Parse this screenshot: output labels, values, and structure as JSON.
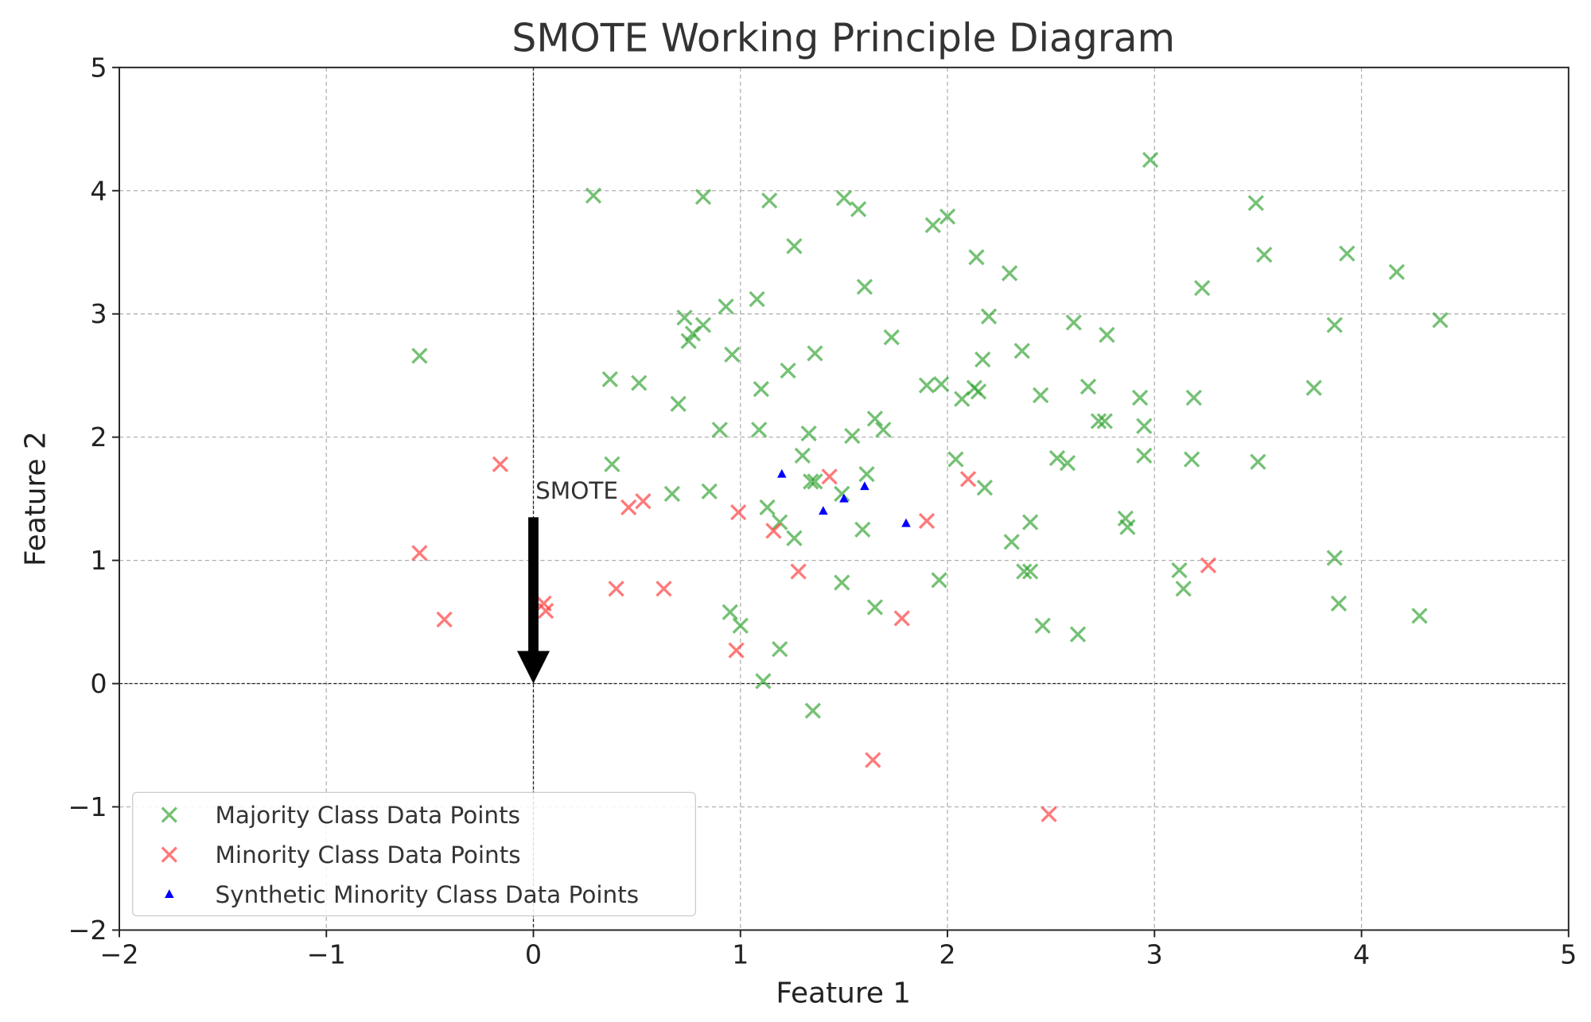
{
  "chart_data": {
    "type": "scatter",
    "title": "SMOTE Working Principle Diagram",
    "xlabel": "Feature 1",
    "ylabel": "Feature 2",
    "xlim": [
      -2,
      5
    ],
    "ylim": [
      -2,
      5
    ],
    "xticks": [
      -2,
      -1,
      0,
      1,
      2,
      3,
      4,
      5
    ],
    "yticks": [
      -2,
      -1,
      0,
      1,
      2,
      3,
      4,
      5
    ],
    "xtick_labels": [
      "−2",
      "−1",
      "0",
      "1",
      "2",
      "3",
      "4",
      "5"
    ],
    "ytick_labels": [
      "−2",
      "−1",
      "0",
      "1",
      "2",
      "3",
      "4",
      "5"
    ],
    "grid": true,
    "legend_position": "lower-left",
    "annotation": {
      "text": "SMOTE",
      "arrow_from": [
        0,
        1.35
      ],
      "arrow_to": [
        0,
        0
      ]
    },
    "series": [
      {
        "name": "Majority Class Data Points",
        "marker": "x",
        "color": "#2ca02c",
        "points": [
          [
            0.29,
            3.96
          ],
          [
            0.82,
            3.95
          ],
          [
            1.14,
            3.92
          ],
          [
            1.5,
            3.94
          ],
          [
            1.57,
            3.85
          ],
          [
            2.98,
            4.25
          ],
          [
            3.49,
            3.9
          ],
          [
            3.53,
            3.48
          ],
          [
            3.93,
            3.49
          ],
          [
            4.17,
            3.34
          ],
          [
            4.38,
            2.95
          ],
          [
            1.93,
            3.72
          ],
          [
            2.0,
            3.79
          ],
          [
            1.26,
            3.55
          ],
          [
            2.14,
            3.46
          ],
          [
            2.3,
            3.33
          ],
          [
            1.6,
            3.22
          ],
          [
            3.23,
            3.21
          ],
          [
            1.08,
            3.12
          ],
          [
            0.93,
            3.06
          ],
          [
            0.73,
            2.97
          ],
          [
            0.82,
            2.91
          ],
          [
            0.77,
            2.84
          ],
          [
            0.75,
            2.78
          ],
          [
            2.2,
            2.98
          ],
          [
            2.61,
            2.93
          ],
          [
            2.77,
            2.83
          ],
          [
            1.73,
            2.81
          ],
          [
            3.87,
            2.91
          ],
          [
            -0.55,
            2.66
          ],
          [
            0.96,
            2.67
          ],
          [
            1.36,
            2.68
          ],
          [
            2.36,
            2.7
          ],
          [
            2.17,
            2.63
          ],
          [
            0.37,
            2.47
          ],
          [
            0.51,
            2.44
          ],
          [
            1.23,
            2.54
          ],
          [
            1.1,
            2.39
          ],
          [
            1.9,
            2.42
          ],
          [
            1.97,
            2.43
          ],
          [
            2.13,
            2.4
          ],
          [
            2.15,
            2.37
          ],
          [
            2.07,
            2.31
          ],
          [
            2.45,
            2.34
          ],
          [
            2.68,
            2.41
          ],
          [
            2.93,
            2.32
          ],
          [
            3.19,
            2.32
          ],
          [
            3.77,
            2.4
          ],
          [
            0.7,
            2.27
          ],
          [
            0.9,
            2.06
          ],
          [
            1.09,
            2.06
          ],
          [
            1.33,
            2.03
          ],
          [
            1.54,
            2.01
          ],
          [
            1.65,
            2.15
          ],
          [
            1.69,
            2.06
          ],
          [
            2.73,
            2.13
          ],
          [
            2.76,
            2.13
          ],
          [
            2.95,
            2.09
          ],
          [
            0.38,
            1.78
          ],
          [
            1.3,
            1.85
          ],
          [
            2.04,
            1.82
          ],
          [
            2.53,
            1.83
          ],
          [
            2.58,
            1.79
          ],
          [
            2.95,
            1.85
          ],
          [
            3.18,
            1.82
          ],
          [
            3.5,
            1.8
          ],
          [
            0.67,
            1.54
          ],
          [
            0.85,
            1.56
          ],
          [
            1.34,
            1.64
          ],
          [
            1.36,
            1.64
          ],
          [
            1.61,
            1.7
          ],
          [
            1.49,
            1.54
          ],
          [
            2.18,
            1.59
          ],
          [
            1.13,
            1.43
          ],
          [
            1.19,
            1.31
          ],
          [
            1.59,
            1.25
          ],
          [
            1.26,
            1.18
          ],
          [
            2.86,
            1.34
          ],
          [
            2.87,
            1.27
          ],
          [
            2.4,
            1.31
          ],
          [
            2.31,
            1.15
          ],
          [
            3.12,
            0.92
          ],
          [
            3.14,
            0.77
          ],
          [
            2.37,
            0.91
          ],
          [
            2.4,
            0.91
          ],
          [
            3.87,
            1.02
          ],
          [
            3.89,
            0.65
          ],
          [
            4.28,
            0.55
          ],
          [
            1.96,
            0.84
          ],
          [
            1.49,
            0.82
          ],
          [
            0.95,
            0.58
          ],
          [
            1.0,
            0.47
          ],
          [
            1.65,
            0.62
          ],
          [
            2.46,
            0.47
          ],
          [
            2.63,
            0.4
          ],
          [
            1.19,
            0.28
          ],
          [
            1.11,
            0.02
          ],
          [
            1.35,
            -0.22
          ]
        ]
      },
      {
        "name": "Minority Class Data Points",
        "marker": "x",
        "color": "#ff3333",
        "points": [
          [
            -0.16,
            1.78
          ],
          [
            -0.55,
            1.06
          ],
          [
            -0.43,
            0.52
          ],
          [
            0.05,
            0.65
          ],
          [
            0.06,
            0.59
          ],
          [
            0.4,
            0.77
          ],
          [
            0.63,
            0.77
          ],
          [
            0.46,
            1.43
          ],
          [
            0.53,
            1.48
          ],
          [
            0.99,
            1.39
          ],
          [
            1.16,
            1.24
          ],
          [
            1.28,
            0.91
          ],
          [
            1.43,
            1.68
          ],
          [
            1.9,
            1.32
          ],
          [
            2.1,
            1.66
          ],
          [
            1.78,
            0.53
          ],
          [
            0.98,
            0.27
          ],
          [
            1.64,
            -0.62
          ],
          [
            2.49,
            -1.06
          ],
          [
            3.26,
            0.96
          ]
        ]
      },
      {
        "name": "Synthetic Minority Class Data Points",
        "marker": "triangle",
        "color": "#0000ff",
        "points": [
          [
            1.2,
            1.7
          ],
          [
            1.4,
            1.4
          ],
          [
            1.5,
            1.5
          ],
          [
            1.6,
            1.6
          ],
          [
            1.8,
            1.3
          ]
        ]
      }
    ]
  }
}
